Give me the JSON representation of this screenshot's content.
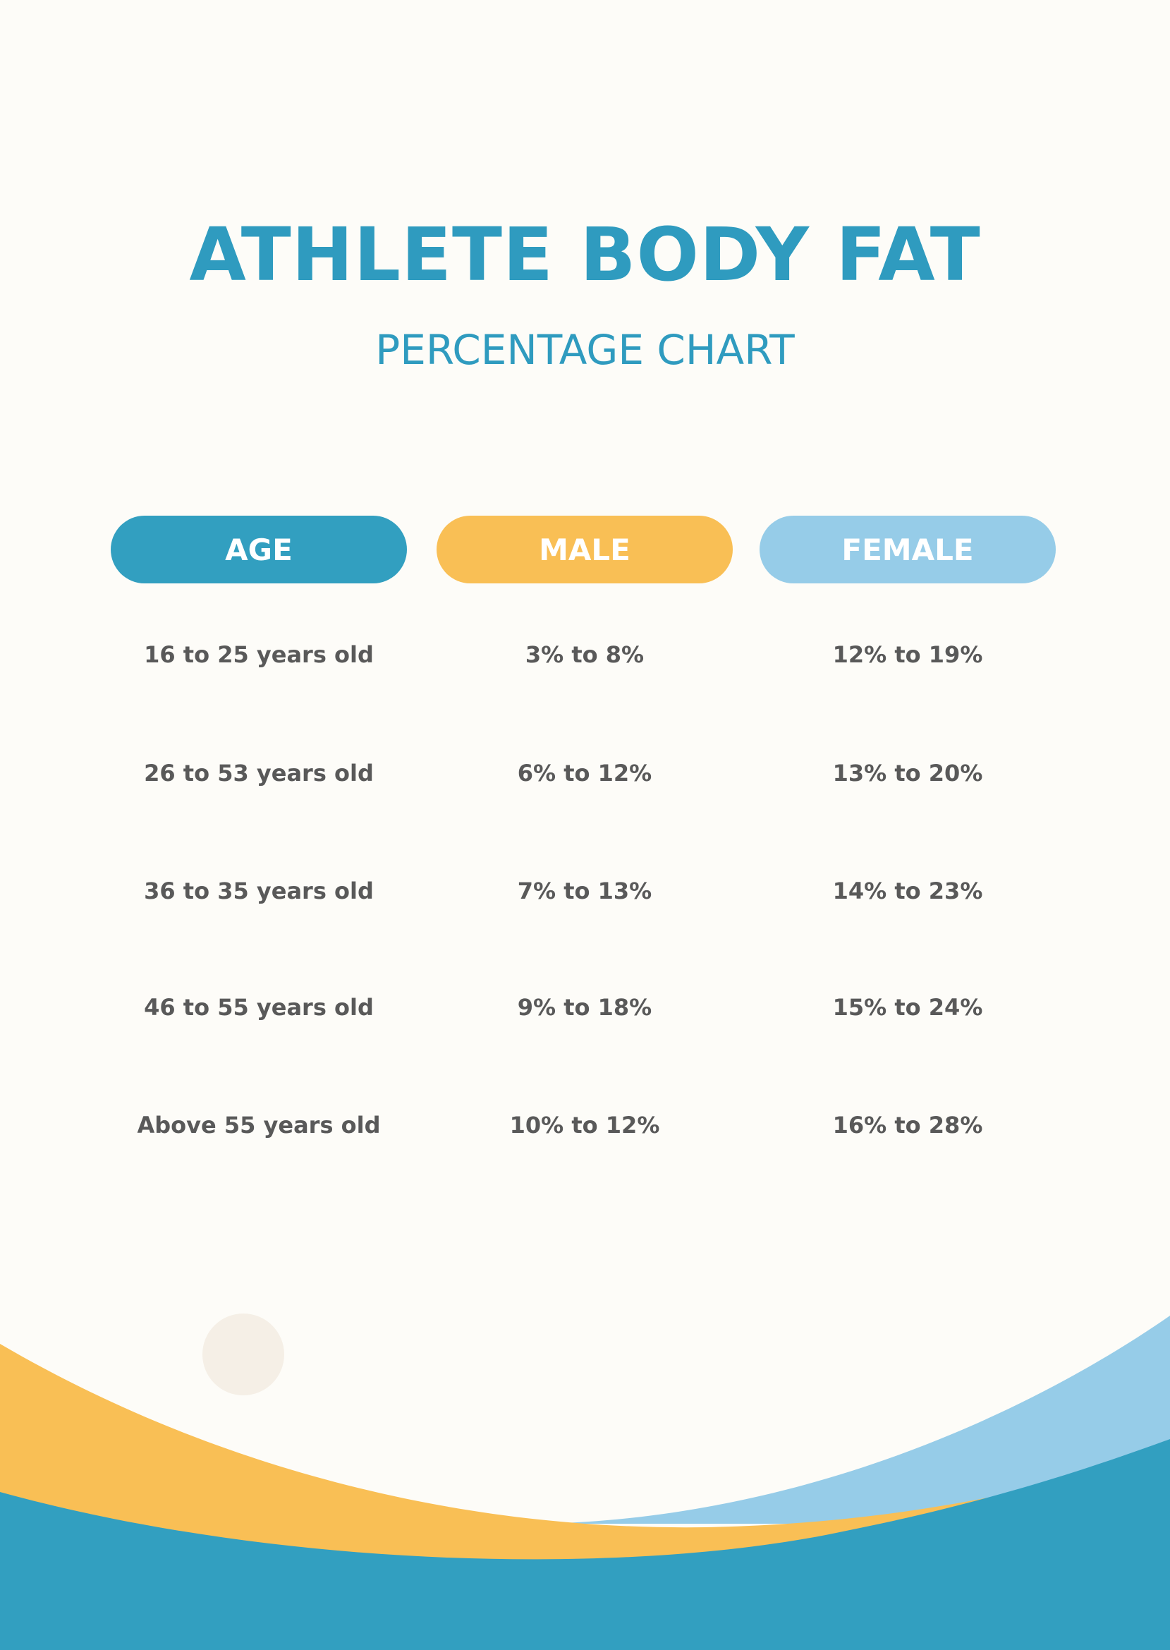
{
  "header": {
    "title": "ATHLETE BODY FAT",
    "subtitle": "PERCENTAGE CHART"
  },
  "table": {
    "columns": [
      "AGE",
      "MALE",
      "FEMALE"
    ],
    "rows": [
      [
        "16 to 25 years old",
        "3% to 8%",
        "12% to 19%"
      ],
      [
        "26 to 53 years old",
        "6% to 12%",
        "13% to 20%"
      ],
      [
        "36 to 35 years old",
        "7% to 13%",
        "14% to 23%"
      ],
      [
        "46 to 55 years old",
        "9% to 18%",
        "15% to 24%"
      ],
      [
        "Above 55 years old",
        "10% to 12%",
        "16% to 28%"
      ]
    ]
  }
}
